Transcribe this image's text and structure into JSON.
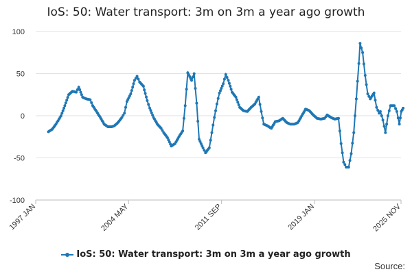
{
  "chart_data": {
    "type": "line",
    "title": "IoS: 50: Water transport: 3m on 3m a year ago growth",
    "xlabel": "",
    "ylabel": "",
    "ylim": [
      -100,
      100
    ],
    "yticks": [
      -100,
      -50,
      0,
      50,
      100
    ],
    "xlim": [
      1997.0,
      2025.83
    ],
    "xtick_labels": [
      "1997 JAN",
      "2004 MAY",
      "2011 SEP",
      "2019 JAN",
      "2025 NOV"
    ],
    "xtick_values": [
      1997.0,
      2004.33,
      2011.67,
      2019.0,
      2025.83
    ],
    "series": [
      {
        "name": "IoS: 50: Water transport: 3m on 3m a year ago growth",
        "color": "#1f77b4",
        "points": [
          [
            1998.0,
            -19
          ],
          [
            1998.3,
            -16
          ],
          [
            1998.6,
            -10
          ],
          [
            1999.0,
            0
          ],
          [
            1999.3,
            12
          ],
          [
            1999.6,
            25
          ],
          [
            1999.9,
            29
          ],
          [
            2000.2,
            28
          ],
          [
            2000.4,
            34
          ],
          [
            2000.7,
            22
          ],
          [
            2001.0,
            20
          ],
          [
            2001.3,
            19
          ],
          [
            2001.5,
            12
          ],
          [
            2001.8,
            5
          ],
          [
            2002.1,
            -2
          ],
          [
            2002.4,
            -10
          ],
          [
            2002.7,
            -13
          ],
          [
            2003.0,
            -13
          ],
          [
            2003.2,
            -12
          ],
          [
            2003.5,
            -8
          ],
          [
            2003.8,
            -2
          ],
          [
            2004.0,
            3
          ],
          [
            2004.2,
            17
          ],
          [
            2004.5,
            26
          ],
          [
            2004.8,
            42
          ],
          [
            2005.0,
            47
          ],
          [
            2005.2,
            40
          ],
          [
            2005.5,
            35
          ],
          [
            2005.8,
            18
          ],
          [
            2006.0,
            9
          ],
          [
            2006.3,
            -2
          ],
          [
            2006.6,
            -10
          ],
          [
            2006.9,
            -15
          ],
          [
            2007.1,
            -20
          ],
          [
            2007.4,
            -26
          ],
          [
            2007.7,
            -36
          ],
          [
            2008.0,
            -33
          ],
          [
            2008.3,
            -25
          ],
          [
            2008.6,
            -18
          ],
          [
            2008.8,
            12
          ],
          [
            2009.0,
            51
          ],
          [
            2009.3,
            42
          ],
          [
            2009.5,
            50
          ],
          [
            2009.7,
            15
          ],
          [
            2009.9,
            -28
          ],
          [
            2010.2,
            -38
          ],
          [
            2010.4,
            -44
          ],
          [
            2010.7,
            -38
          ],
          [
            2010.9,
            -20
          ],
          [
            2011.1,
            -2
          ],
          [
            2011.3,
            14
          ],
          [
            2011.5,
            27
          ],
          [
            2011.8,
            38
          ],
          [
            2012.0,
            49
          ],
          [
            2012.2,
            42
          ],
          [
            2012.5,
            28
          ],
          [
            2012.8,
            22
          ],
          [
            2013.1,
            10
          ],
          [
            2013.4,
            6
          ],
          [
            2013.7,
            5
          ],
          [
            2014.0,
            10
          ],
          [
            2014.3,
            14
          ],
          [
            2014.6,
            22
          ],
          [
            2014.8,
            5
          ],
          [
            2015.0,
            -10
          ],
          [
            2015.3,
            -12
          ],
          [
            2015.6,
            -15
          ],
          [
            2015.9,
            -7
          ],
          [
            2016.2,
            -6
          ],
          [
            2016.5,
            -3
          ],
          [
            2016.8,
            -8
          ],
          [
            2017.1,
            -10
          ],
          [
            2017.4,
            -10
          ],
          [
            2017.7,
            -8
          ],
          [
            2018.0,
            0
          ],
          [
            2018.3,
            8
          ],
          [
            2018.6,
            6
          ],
          [
            2018.9,
            1
          ],
          [
            2019.2,
            -3
          ],
          [
            2019.5,
            -4
          ],
          [
            2019.8,
            -3
          ],
          [
            2020.0,
            1
          ],
          [
            2020.3,
            -2
          ],
          [
            2020.6,
            -4
          ],
          [
            2020.9,
            -3
          ],
          [
            2021.1,
            -33
          ],
          [
            2021.3,
            -55
          ],
          [
            2021.5,
            -61
          ],
          [
            2021.7,
            -61
          ],
          [
            2021.9,
            -45
          ],
          [
            2022.1,
            -20
          ],
          [
            2022.3,
            20
          ],
          [
            2022.5,
            62
          ],
          [
            2022.6,
            86
          ],
          [
            2022.8,
            75
          ],
          [
            2023.0,
            48
          ],
          [
            2023.2,
            26
          ],
          [
            2023.4,
            20
          ],
          [
            2023.7,
            27
          ],
          [
            2023.9,
            10
          ],
          [
            2024.1,
            3
          ],
          [
            2024.2,
            5
          ],
          [
            2024.4,
            -5
          ],
          [
            2024.6,
            -20
          ],
          [
            2024.8,
            0
          ],
          [
            2025.0,
            12
          ],
          [
            2025.3,
            12
          ],
          [
            2025.5,
            5
          ],
          [
            2025.7,
            -10
          ],
          [
            2025.85,
            5
          ],
          [
            2026.0,
            9
          ]
        ]
      }
    ]
  },
  "legend": {
    "label": "IoS: 50: Water transport: 3m on 3m a year ago growth"
  },
  "source": {
    "label": "Source:"
  }
}
